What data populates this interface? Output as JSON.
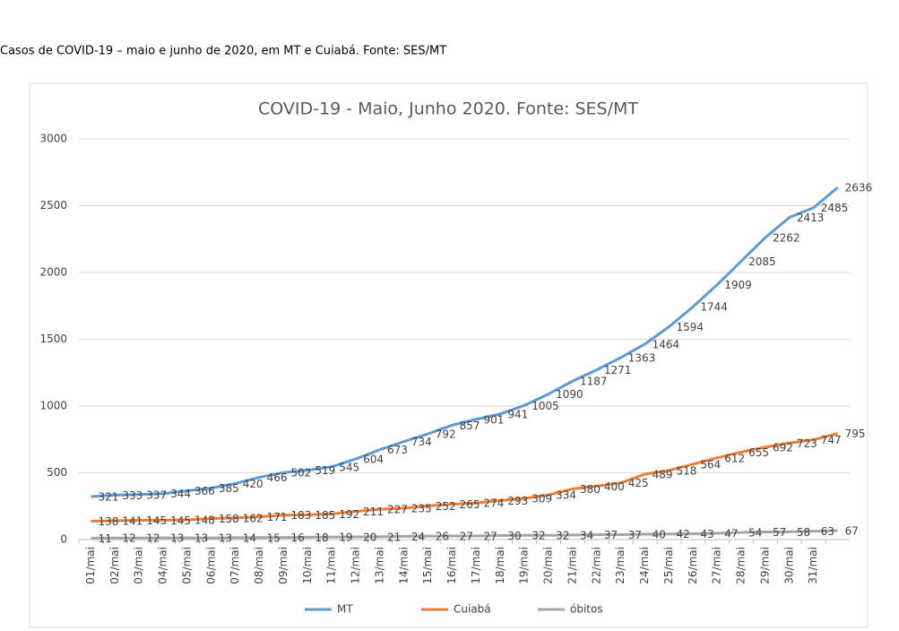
{
  "caption": "Casos de COVID-19 – maio e junho de 2020, em MT e Cuiabá. Fonte: SES/MT",
  "chart_data": {
    "type": "line",
    "title": "COVID-19 - Maio, Junho 2020. Fonte: SES/MT",
    "categories": [
      "01/mai",
      "02/mai",
      "03/mai",
      "04/mai",
      "05/mai",
      "06/mai",
      "07/mai",
      "08/mai",
      "09/mai",
      "10/mai",
      "11/mai",
      "12/mai",
      "13/mai",
      "14/mai",
      "15/mai",
      "16/mai",
      "17/mai",
      "18/mai",
      "19/mai",
      "20/mai",
      "21/mai",
      "22/mai",
      "23/mai",
      "24/mai",
      "25/mai",
      "26/mai",
      "27/mai",
      "28/mai",
      "29/mai",
      "30/mai",
      "31/mai",
      null
    ],
    "series": [
      {
        "name": "MT",
        "color": "#5b9bd5",
        "values": [
          321,
          333,
          337,
          344,
          366,
          385,
          420,
          466,
          502,
          519,
          545,
          604,
          673,
          734,
          792,
          857,
          901,
          941,
          1005,
          1090,
          1187,
          1271,
          1363,
          1464,
          1594,
          1744,
          1909,
          2085,
          2262,
          2413,
          2485,
          2636
        ]
      },
      {
        "name": "Cuiabá",
        "color": "#ed7d31",
        "values": [
          138,
          141,
          145,
          145,
          148,
          158,
          162,
          171,
          183,
          185,
          192,
          211,
          227,
          235,
          252,
          265,
          274,
          293,
          309,
          334,
          380,
          400,
          425,
          489,
          518,
          564,
          612,
          655,
          692,
          723,
          747,
          795
        ]
      },
      {
        "name": "óbitos",
        "color": "#a5a5a5",
        "values": [
          11,
          12,
          12,
          13,
          13,
          13,
          14,
          15,
          16,
          18,
          19,
          20,
          21,
          24,
          26,
          27,
          27,
          30,
          32,
          32,
          34,
          37,
          37,
          40,
          42,
          43,
          47,
          54,
          57,
          58,
          63,
          67
        ]
      }
    ],
    "ylim": [
      0,
      3000
    ],
    "yticks": [
      0,
      500,
      1000,
      1500,
      2000,
      2500,
      3000
    ],
    "grid": true,
    "legend": "bottom"
  }
}
